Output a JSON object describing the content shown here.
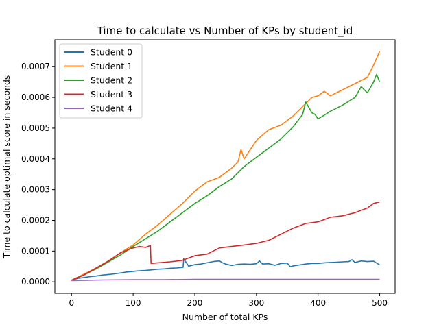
{
  "chart_data": {
    "type": "line",
    "title": "Time to calculate vs Number of KPs by student_id",
    "xlabel": "Number of  total KPs",
    "ylabel": "Time to calculate optimal score in seconds",
    "xlim": [
      -27,
      525
    ],
    "ylim": [
      -3.75e-05,
      0.0007875
    ],
    "xticks": [
      0,
      100,
      200,
      300,
      400,
      500
    ],
    "xtick_labels": [
      "0",
      "100",
      "200",
      "300",
      "400",
      "500"
    ],
    "yticks": [
      0,
      0.0001,
      0.0002,
      0.0003,
      0.0004,
      0.0005,
      0.0006,
      0.0007
    ],
    "ytick_labels": [
      "0.0000",
      "0.0001",
      "0.0002",
      "0.0003",
      "0.0004",
      "0.0005",
      "0.0006",
      "0.0007"
    ],
    "grid": false,
    "legend_position": "top-left",
    "series": [
      {
        "name": "Student 0",
        "color": "#1f77b4",
        "x": [
          0,
          10,
          20,
          30,
          40,
          50,
          60,
          70,
          80,
          90,
          100,
          110,
          120,
          130,
          140,
          150,
          160,
          170,
          181,
          182,
          190,
          200,
          210,
          220,
          230,
          240,
          245,
          250,
          260,
          270,
          280,
          290,
          300,
          305,
          310,
          320,
          330,
          340,
          350,
          355,
          360,
          370,
          380,
          390,
          400,
          410,
          420,
          430,
          440,
          450,
          455,
          460,
          470,
          480,
          490,
          500
        ],
        "y": [
          5e-06,
          1.1e-05,
          1.4e-05,
          1.7e-05,
          1.9e-05,
          2.2e-05,
          2.4e-05,
          2.6e-05,
          2.9e-05,
          3.2e-05,
          3.4e-05,
          3.6e-05,
          3.7e-05,
          3.9e-05,
          4.1e-05,
          4.2e-05,
          4.4e-05,
          4.5e-05,
          4.7e-05,
          7.5e-05,
          5.1e-05,
          5.6e-05,
          5.8e-05,
          6.2e-05,
          6.6e-05,
          6.8e-05,
          6.2e-05,
          5.8e-05,
          5.3e-05,
          5.7e-05,
          5.8e-05,
          5.7e-05,
          5.9e-05,
          6.8e-05,
          5.8e-05,
          5.9e-05,
          5.4e-05,
          6e-05,
          6.1e-05,
          4.9e-05,
          5.2e-05,
          5.5e-05,
          5.8e-05,
          6e-05,
          6e-05,
          6.2e-05,
          6.3e-05,
          6.4e-05,
          6.5e-05,
          6.6e-05,
          7.2e-05,
          6.3e-05,
          6.8e-05,
          6.6e-05,
          6.7e-05,
          5.5e-05
        ]
      },
      {
        "name": "Student 1",
        "color": "#ff7f0e",
        "x": [
          0,
          20,
          40,
          60,
          80,
          100,
          120,
          140,
          160,
          180,
          200,
          220,
          240,
          260,
          270,
          275,
          280,
          300,
          320,
          340,
          360,
          380,
          390,
          400,
          410,
          420,
          440,
          460,
          480,
          490,
          500
        ],
        "y": [
          5e-06,
          2.5e-05,
          4.5e-05,
          6.8e-05,
          9.5e-05,
          0.00012,
          0.000155,
          0.000185,
          0.00022,
          0.000255,
          0.000295,
          0.000325,
          0.00034,
          0.00037,
          0.00039,
          0.00043,
          0.0004,
          0.00046,
          0.000495,
          0.00051,
          0.00054,
          0.00058,
          0.0006,
          0.000605,
          0.00062,
          0.000605,
          0.000625,
          0.000645,
          0.000665,
          0.000705,
          0.00075
        ]
      },
      {
        "name": "Student 2",
        "color": "#2ca02c",
        "x": [
          0,
          20,
          40,
          60,
          80,
          100,
          120,
          140,
          160,
          180,
          200,
          220,
          240,
          260,
          280,
          300,
          320,
          340,
          360,
          375,
          380,
          390,
          395,
          400,
          420,
          440,
          460,
          470,
          480,
          490,
          495,
          500
        ],
        "y": [
          5e-06,
          2.2e-05,
          4.2e-05,
          6.5e-05,
          8.8e-05,
          0.000115,
          0.00014,
          0.000165,
          0.000195,
          0.000225,
          0.000255,
          0.00028,
          0.00031,
          0.000335,
          0.000375,
          0.000405,
          0.000435,
          0.000465,
          0.000505,
          0.000545,
          0.000585,
          0.00055,
          0.000545,
          0.00053,
          0.000555,
          0.000575,
          0.0006,
          0.000635,
          0.000615,
          0.00065,
          0.000675,
          0.00065
        ]
      },
      {
        "name": "Student 3",
        "color": "#d62728",
        "x": [
          0,
          20,
          40,
          60,
          80,
          100,
          110,
          120,
          128,
          129,
          140,
          160,
          180,
          200,
          220,
          240,
          260,
          280,
          300,
          320,
          340,
          360,
          380,
          400,
          420,
          440,
          460,
          480,
          490,
          500
        ],
        "y": [
          5e-06,
          2.2e-05,
          4.5e-05,
          6.8e-05,
          9.5e-05,
          0.00011,
          0.000115,
          0.000112,
          0.000118,
          6e-05,
          6.2e-05,
          6.5e-05,
          7e-05,
          8.5e-05,
          9e-05,
          0.00011,
          0.000115,
          0.00012,
          0.000125,
          0.000135,
          0.000155,
          0.000175,
          0.00019,
          0.000195,
          0.00021,
          0.000215,
          0.000225,
          0.00024,
          0.000255,
          0.00026
        ]
      },
      {
        "name": "Student 4",
        "color": "#9467bd",
        "x": [
          0,
          50,
          100,
          150,
          200,
          250,
          300,
          350,
          400,
          450,
          500
        ],
        "y": [
          4e-06,
          6e-06,
          7e-06,
          7e-06,
          8e-06,
          8e-06,
          8e-06,
          8e-06,
          8e-06,
          8e-06,
          8e-06
        ]
      }
    ]
  }
}
